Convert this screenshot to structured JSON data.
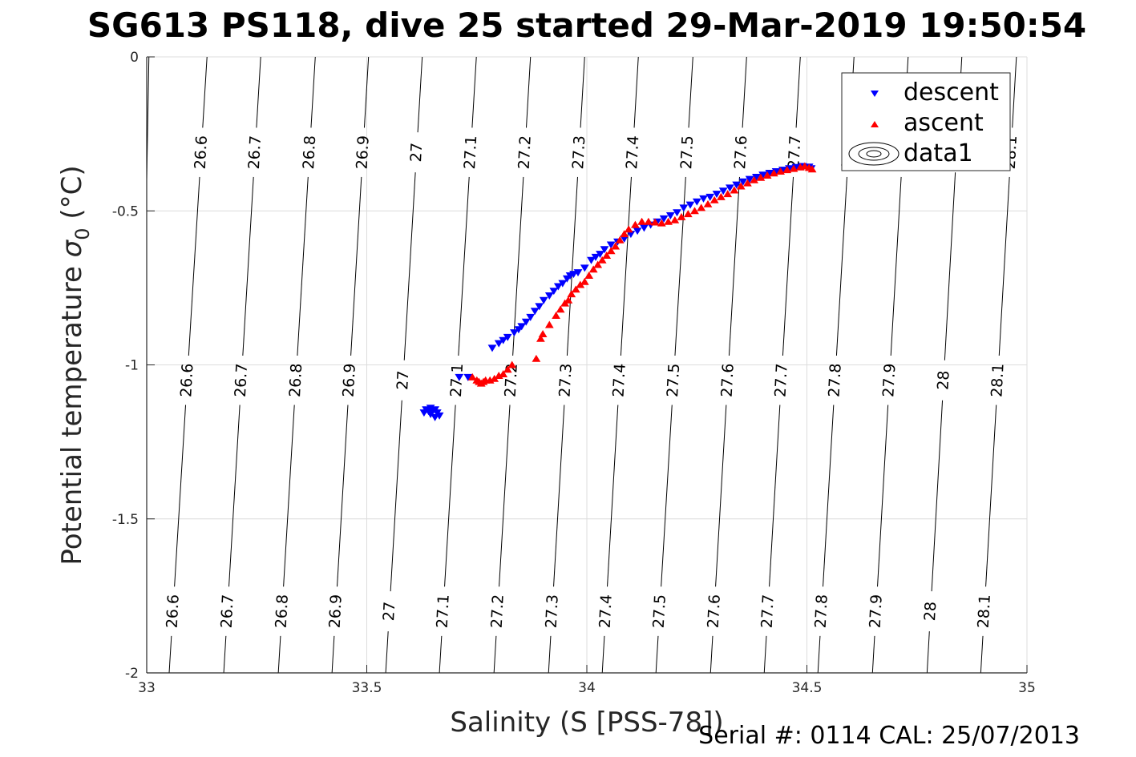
{
  "chart_data": {
    "type": "scatter",
    "title": "SG613 PS118, dive 25 started 29-Mar-2019 19:50:54",
    "xlabel": "Salinity (S [PSS-78])",
    "ylabel_main": "Potential temperature ",
    "ylabel_symbol": "σ",
    "ylabel_sub": "0",
    "ylabel_unit": " (°C)",
    "xlim": [
      33,
      35
    ],
    "ylim": [
      -2,
      0
    ],
    "xticks": [
      33,
      33.5,
      34,
      34.5,
      35
    ],
    "xtick_labels": [
      "33",
      "33.5",
      "34",
      "34.5",
      "35"
    ],
    "yticks": [
      0,
      -0.5,
      -1,
      -1.5,
      -2
    ],
    "ytick_labels": [
      "0",
      "-0.5",
      "-1",
      "-1.5",
      "-2"
    ],
    "grid": true,
    "legend": {
      "placement": "top-right",
      "entries": [
        {
          "label": "descent",
          "marker": "triangle-down",
          "color": "#0000ff"
        },
        {
          "label": "ascent",
          "marker": "triangle-up",
          "color": "#ff0000"
        },
        {
          "label": "data1",
          "marker": "contour",
          "color": "#000000"
        }
      ]
    },
    "density_contours": {
      "levels": [
        26.5,
        26.6,
        26.7,
        26.8,
        26.9,
        27.0,
        27.1,
        27.2,
        27.3,
        27.4,
        27.5,
        27.6,
        27.7,
        27.8,
        27.9,
        28.0,
        28.1
      ],
      "labels": [
        "",
        "26.6",
        "26.7",
        "26.8",
        "26.9",
        "27",
        "27.1",
        "27.2",
        "27.3",
        "27.4",
        "27.5",
        "27.6",
        "27.7",
        "27.8",
        "27.9",
        "28",
        "28.1"
      ],
      "salinity_at_theta_0": [
        33.005,
        33.137,
        33.259,
        33.383,
        33.504,
        33.626,
        33.749,
        33.872,
        33.995,
        34.117,
        34.241,
        34.363,
        34.485,
        34.607,
        34.73,
        34.852,
        34.976
      ],
      "salinity_at_theta_minus2": [
        32.98,
        33.051,
        33.175,
        33.299,
        33.421,
        33.543,
        33.665,
        33.789,
        33.913,
        34.035,
        34.157,
        34.281,
        34.403,
        34.525,
        34.649,
        34.773,
        34.895
      ],
      "label_theta_rows": [
        -0.31,
        -1.05,
        -1.8
      ]
    },
    "series": [
      {
        "name": "descent",
        "color": "#0000ff",
        "marker": "triangle-down",
        "points": [
          [
            33.635,
            -1.145
          ],
          [
            33.64,
            -1.15
          ],
          [
            33.645,
            -1.16
          ],
          [
            33.65,
            -1.15
          ],
          [
            33.655,
            -1.17
          ],
          [
            33.66,
            -1.155
          ],
          [
            33.665,
            -1.165
          ],
          [
            33.645,
            -1.14
          ],
          [
            33.655,
            -1.145
          ],
          [
            33.63,
            -1.155
          ],
          [
            33.71,
            -1.04
          ],
          [
            33.73,
            -1.04
          ],
          [
            33.785,
            -0.945
          ],
          [
            33.8,
            -0.93
          ],
          [
            33.81,
            -0.92
          ],
          [
            33.82,
            -0.91
          ],
          [
            33.835,
            -0.895
          ],
          [
            33.845,
            -0.885
          ],
          [
            33.852,
            -0.875
          ],
          [
            33.862,
            -0.86
          ],
          [
            33.872,
            -0.845
          ],
          [
            33.882,
            -0.825
          ],
          [
            33.892,
            -0.81
          ],
          [
            33.902,
            -0.79
          ],
          [
            33.915,
            -0.775
          ],
          [
            33.925,
            -0.76
          ],
          [
            33.935,
            -0.745
          ],
          [
            33.945,
            -0.735
          ],
          [
            33.955,
            -0.72
          ],
          [
            33.962,
            -0.71
          ],
          [
            33.97,
            -0.705
          ],
          [
            33.98,
            -0.7
          ],
          [
            33.995,
            -0.685
          ],
          [
            34.01,
            -0.66
          ],
          [
            34.02,
            -0.65
          ],
          [
            34.03,
            -0.64
          ],
          [
            34.04,
            -0.625
          ],
          [
            34.055,
            -0.61
          ],
          [
            34.07,
            -0.6
          ],
          [
            34.085,
            -0.59
          ],
          [
            34.1,
            -0.575
          ],
          [
            34.115,
            -0.565
          ],
          [
            34.13,
            -0.555
          ],
          [
            34.145,
            -0.545
          ],
          [
            34.16,
            -0.535
          ],
          [
            34.175,
            -0.525
          ],
          [
            34.19,
            -0.515
          ],
          [
            34.205,
            -0.505
          ],
          [
            34.22,
            -0.49
          ],
          [
            34.235,
            -0.48
          ],
          [
            34.25,
            -0.47
          ],
          [
            34.265,
            -0.46
          ],
          [
            34.28,
            -0.455
          ],
          [
            34.295,
            -0.445
          ],
          [
            34.31,
            -0.435
          ],
          [
            34.325,
            -0.425
          ],
          [
            34.34,
            -0.415
          ],
          [
            34.355,
            -0.405
          ],
          [
            34.37,
            -0.397
          ],
          [
            34.385,
            -0.39
          ],
          [
            34.4,
            -0.383
          ],
          [
            34.415,
            -0.377
          ],
          [
            34.43,
            -0.372
          ],
          [
            34.445,
            -0.367
          ],
          [
            34.46,
            -0.362
          ],
          [
            34.475,
            -0.358
          ],
          [
            34.49,
            -0.355
          ],
          [
            34.505,
            -0.357
          ],
          [
            34.51,
            -0.362
          ]
        ]
      },
      {
        "name": "ascent",
        "color": "#ff0000",
        "marker": "triangle-up",
        "points": [
          [
            33.74,
            -1.04
          ],
          [
            33.75,
            -1.05
          ],
          [
            33.755,
            -1.055
          ],
          [
            33.76,
            -1.06
          ],
          [
            33.765,
            -1.055
          ],
          [
            33.77,
            -1.05
          ],
          [
            33.78,
            -1.05
          ],
          [
            33.79,
            -1.045
          ],
          [
            33.8,
            -1.035
          ],
          [
            33.81,
            -1.03
          ],
          [
            33.82,
            -1.015
          ],
          [
            33.83,
            -1.0
          ],
          [
            33.885,
            -0.98
          ],
          [
            33.895,
            -0.915
          ],
          [
            33.9,
            -0.9
          ],
          [
            33.915,
            -0.87
          ],
          [
            33.93,
            -0.84
          ],
          [
            33.94,
            -0.82
          ],
          [
            33.95,
            -0.8
          ],
          [
            33.958,
            -0.79
          ],
          [
            33.965,
            -0.77
          ],
          [
            33.975,
            -0.755
          ],
          [
            33.985,
            -0.74
          ],
          [
            33.995,
            -0.73
          ],
          [
            34.005,
            -0.71
          ],
          [
            34.015,
            -0.69
          ],
          [
            34.025,
            -0.675
          ],
          [
            34.035,
            -0.66
          ],
          [
            34.045,
            -0.645
          ],
          [
            34.055,
            -0.63
          ],
          [
            34.065,
            -0.615
          ],
          [
            34.075,
            -0.595
          ],
          [
            34.085,
            -0.575
          ],
          [
            34.095,
            -0.56
          ],
          [
            34.11,
            -0.545
          ],
          [
            34.125,
            -0.535
          ],
          [
            34.14,
            -0.535
          ],
          [
            34.155,
            -0.537
          ],
          [
            34.17,
            -0.54
          ],
          [
            34.185,
            -0.535
          ],
          [
            34.2,
            -0.53
          ],
          [
            34.215,
            -0.52
          ],
          [
            34.23,
            -0.51
          ],
          [
            34.245,
            -0.5
          ],
          [
            34.26,
            -0.49
          ],
          [
            34.275,
            -0.478
          ],
          [
            34.29,
            -0.465
          ],
          [
            34.305,
            -0.455
          ],
          [
            34.32,
            -0.445
          ],
          [
            34.335,
            -0.433
          ],
          [
            34.35,
            -0.42
          ],
          [
            34.365,
            -0.41
          ],
          [
            34.38,
            -0.4
          ],
          [
            34.395,
            -0.392
          ],
          [
            34.41,
            -0.385
          ],
          [
            34.425,
            -0.378
          ],
          [
            34.44,
            -0.372
          ],
          [
            34.455,
            -0.367
          ],
          [
            34.47,
            -0.363
          ],
          [
            34.485,
            -0.358
          ],
          [
            34.495,
            -0.355
          ],
          [
            34.505,
            -0.36
          ],
          [
            34.512,
            -0.365
          ]
        ]
      }
    ]
  },
  "footer": {
    "serial_text": "Serial #: 0114  CAL: 25/07/2013"
  }
}
